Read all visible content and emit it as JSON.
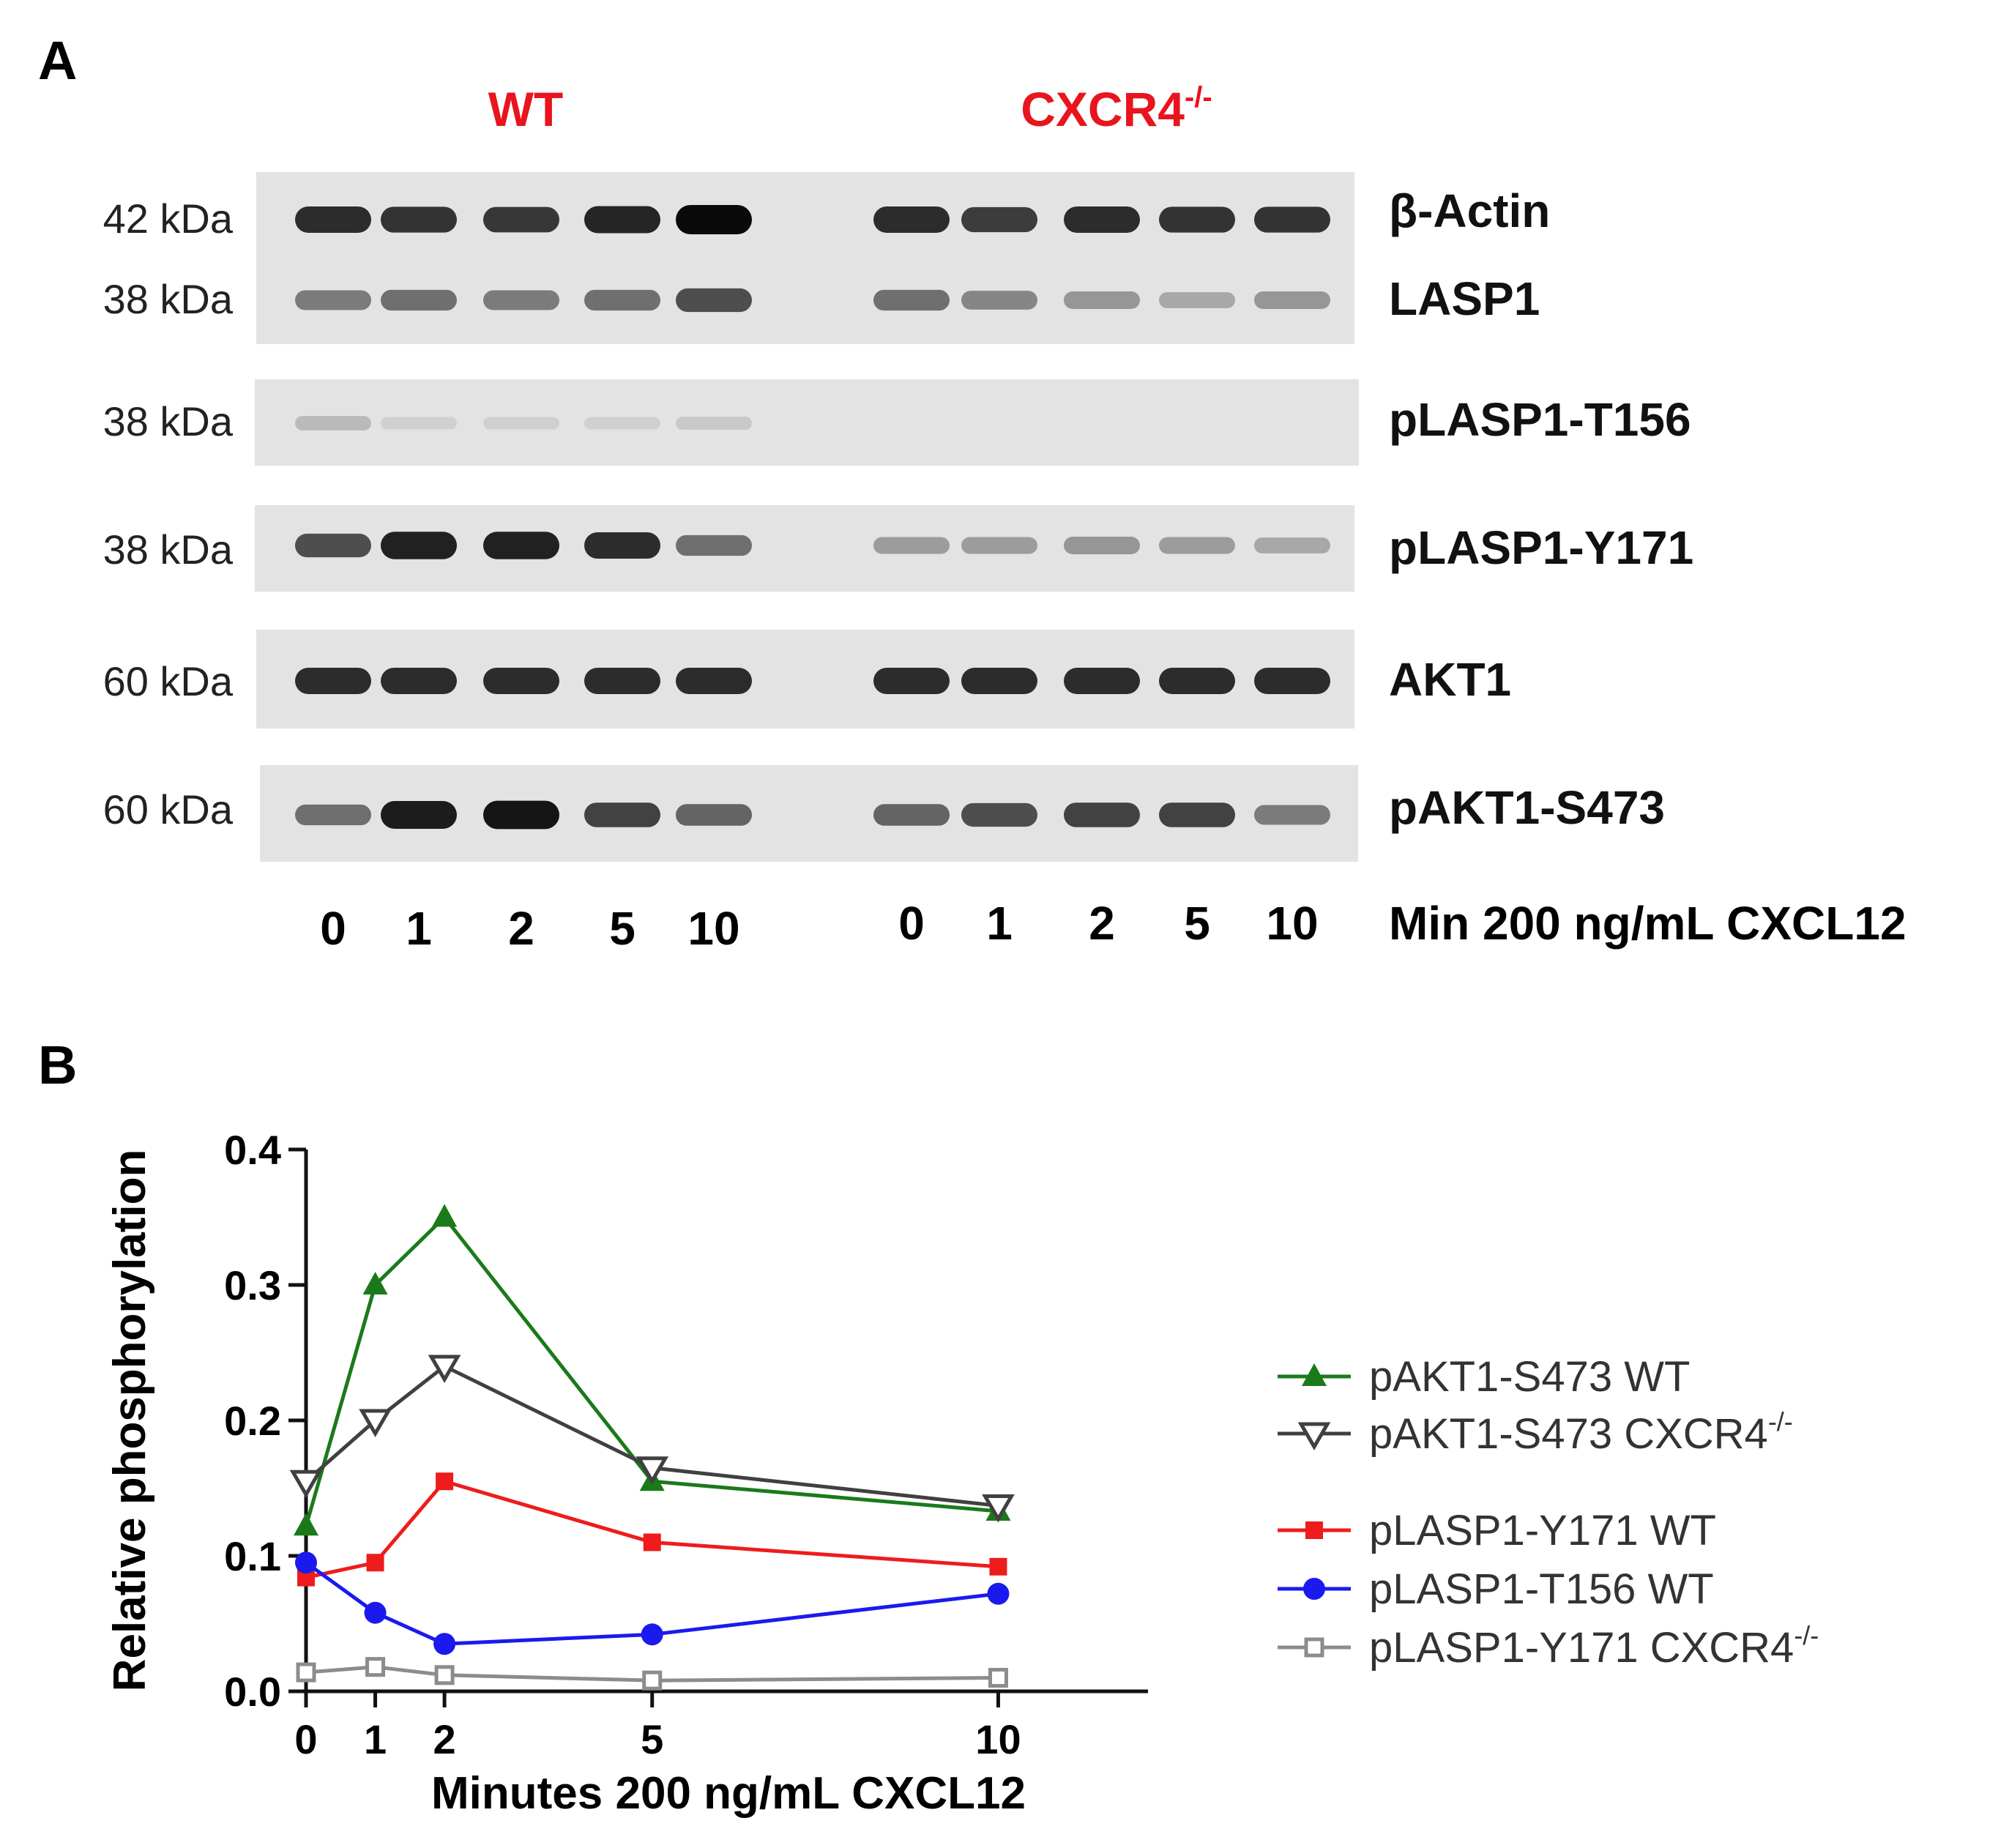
{
  "panel_a": {
    "label": "A",
    "group_wt": "WT",
    "group_ko": "CXCR4",
    "group_ko_sup": "-/-",
    "group_color": "#e8141e",
    "blots": [
      {
        "rows": [
          {
            "name": "β-Actin",
            "kda": "42 kDa",
            "wt": [
              0.85,
              0.82,
              0.8,
              0.88,
              1.0
            ],
            "ko": [
              0.85,
              0.78,
              0.85,
              0.82,
              0.82
            ]
          },
          {
            "name": "LASP1",
            "kda": "38 kDa",
            "wt": [
              0.5,
              0.55,
              0.5,
              0.55,
              0.7
            ],
            "ko": [
              0.55,
              0.45,
              0.38,
              0.3,
              0.38
            ]
          }
        ]
      },
      {
        "rows": [
          {
            "name": "pLASP1-T156",
            "kda": "38 kDa",
            "wt": [
              0.22,
              0.12,
              0.12,
              0.12,
              0.15
            ],
            "ko": [
              0,
              0,
              0,
              0,
              0
            ]
          }
        ]
      },
      {
        "rows": [
          {
            "name": "pLASP1-Y171",
            "kda": "38 kDa",
            "wt": [
              0.7,
              0.9,
              0.9,
              0.85,
              0.55
            ],
            "ko": [
              0.35,
              0.35,
              0.38,
              0.35,
              0.3
            ]
          }
        ]
      },
      {
        "rows": [
          {
            "name": "AKT1",
            "kda": "60 kDa",
            "wt": [
              0.85,
              0.85,
              0.85,
              0.85,
              0.85
            ],
            "ko": [
              0.85,
              0.85,
              0.85,
              0.85,
              0.85
            ]
          }
        ]
      },
      {
        "rows": [
          {
            "name": "pAKT1-S473",
            "kda": "60 kDa",
            "wt": [
              0.55,
              0.92,
              0.95,
              0.75,
              0.6
            ],
            "ko": [
              0.6,
              0.7,
              0.75,
              0.75,
              0.5
            ]
          }
        ]
      }
    ],
    "lanes_wt": [
      "0",
      "1",
      "2",
      "5",
      "10"
    ],
    "lanes_ko": [
      "0",
      "1",
      "2",
      "5",
      "10"
    ],
    "lane_caption": "Min 200 ng/mL CXCL12"
  },
  "panel_b": {
    "label": "B",
    "chart_data": {
      "type": "line",
      "xlabel": "Minutes 200 ng/mL CXCL12",
      "ylabel": "Relative phosphorylation",
      "x": [
        0,
        1,
        2,
        5,
        10
      ],
      "xticks": [
        "0",
        "1",
        "2",
        "5",
        "10"
      ],
      "yticks": [
        "0.0",
        "0.1",
        "0.2",
        "0.3",
        "0.4"
      ],
      "xlim": [
        0,
        11
      ],
      "ylim": [
        0,
        0.4
      ],
      "grid": false,
      "legend_position": "right",
      "series": [
        {
          "name": "pAKT1-S473 WT",
          "color": "#1a7a1a",
          "marker": "triangle-up-filled",
          "values": [
            0.122,
            0.3,
            0.35,
            0.155,
            0.133
          ]
        },
        {
          "name": "pAKT1-S473 CXCR4",
          "sup": "-/-",
          "color": "#404040",
          "marker": "triangle-down-open",
          "values": [
            0.155,
            0.2,
            0.24,
            0.165,
            0.137
          ]
        },
        {
          "name": "pLASP1-Y171 WT",
          "color": "#ee1c1c",
          "marker": "square-filled",
          "values": [
            0.084,
            0.095,
            0.155,
            0.11,
            0.092
          ]
        },
        {
          "name": "pLASP1-T156 WT",
          "color": "#1a1aee",
          "marker": "circle-filled",
          "values": [
            0.095,
            0.058,
            0.035,
            0.042,
            0.072
          ]
        },
        {
          "name": "pLASP1-Y171 CXCR4",
          "sup": "-/-",
          "color": "#8c8c8c",
          "marker": "square-open",
          "values": [
            0.014,
            0.018,
            0.012,
            0.008,
            0.01
          ]
        }
      ]
    }
  }
}
